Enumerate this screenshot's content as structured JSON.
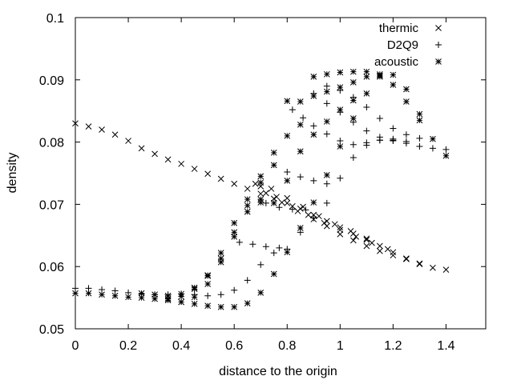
{
  "chart_data": {
    "type": "scatter",
    "xlabel": "distance to the origin",
    "ylabel": "density",
    "xlim": [
      0,
      1.55
    ],
    "ylim": [
      0.05,
      0.1
    ],
    "x_ticks": [
      "0",
      "0.2",
      "0.4",
      "0.6",
      "0.8",
      "1",
      "1.2",
      "1.4"
    ],
    "x_tick_values": [
      0,
      0.2,
      0.4,
      0.6,
      0.8,
      1.0,
      1.2,
      1.4
    ],
    "y_ticks": [
      "0.05",
      "0.06",
      "0.07",
      "0.08",
      "0.09",
      "0.1"
    ],
    "y_tick_values": [
      0.05,
      0.06,
      0.07,
      0.08,
      0.09,
      0.1
    ],
    "grid": false,
    "legend_position": "top-right",
    "series": [
      {
        "name": "thermic",
        "marker": "x",
        "values": [
          [
            0.0,
            0.083
          ],
          [
            0.05,
            0.0825
          ],
          [
            0.1,
            0.082
          ],
          [
            0.15,
            0.0812
          ],
          [
            0.2,
            0.0802
          ],
          [
            0.25,
            0.079
          ],
          [
            0.3,
            0.0781
          ],
          [
            0.35,
            0.0772
          ],
          [
            0.4,
            0.0765
          ],
          [
            0.45,
            0.0757
          ],
          [
            0.5,
            0.0749
          ],
          [
            0.55,
            0.0741
          ],
          [
            0.6,
            0.0733
          ],
          [
            0.65,
            0.0725
          ],
          [
            0.7,
            0.0717
          ],
          [
            0.75,
            0.0709
          ],
          [
            0.8,
            0.0702
          ],
          [
            0.85,
            0.0693
          ],
          [
            0.9,
            0.0683
          ],
          [
            0.95,
            0.0673
          ],
          [
            1.0,
            0.0663
          ],
          [
            1.05,
            0.0653
          ],
          [
            1.1,
            0.0643
          ],
          [
            1.15,
            0.0633
          ],
          [
            1.2,
            0.0623
          ],
          [
            1.25,
            0.0613
          ],
          [
            1.3,
            0.0604
          ],
          [
            1.35,
            0.0598
          ],
          [
            1.4,
            0.0595
          ],
          [
            0.68,
            0.0733
          ],
          [
            0.72,
            0.0718
          ],
          [
            0.78,
            0.0703
          ],
          [
            0.84,
            0.0689
          ],
          [
            0.9,
            0.0676
          ],
          [
            0.95,
            0.0665
          ],
          [
            1.0,
            0.0652
          ],
          [
            1.05,
            0.0642
          ],
          [
            1.1,
            0.0633
          ],
          [
            1.15,
            0.0625
          ],
          [
            1.2,
            0.0618
          ],
          [
            1.25,
            0.0612
          ],
          [
            1.3,
            0.0605
          ],
          [
            0.7,
            0.0729
          ],
          [
            0.76,
            0.0712
          ],
          [
            0.82,
            0.0697
          ],
          [
            0.88,
            0.0683
          ],
          [
            0.94,
            0.067
          ],
          [
            1.0,
            0.0659
          ],
          [
            1.06,
            0.0648
          ],
          [
            1.12,
            0.0638
          ],
          [
            1.18,
            0.0628
          ],
          [
            0.74,
            0.0725
          ],
          [
            0.8,
            0.071
          ],
          [
            0.86,
            0.0696
          ],
          [
            0.92,
            0.0681
          ],
          [
            0.98,
            0.0668
          ],
          [
            1.04,
            0.0657
          ],
          [
            1.1,
            0.0645
          ]
        ]
      },
      {
        "name": "D2Q9",
        "marker": "+",
        "values": [
          [
            0.0,
            0.0565
          ],
          [
            0.05,
            0.0565
          ],
          [
            0.1,
            0.0563
          ],
          [
            0.15,
            0.0561
          ],
          [
            0.2,
            0.0558
          ],
          [
            0.25,
            0.0556
          ],
          [
            0.3,
            0.0555
          ],
          [
            0.35,
            0.0555
          ],
          [
            0.4,
            0.0556
          ],
          [
            0.45,
            0.0555
          ],
          [
            0.5,
            0.0553
          ],
          [
            0.55,
            0.0555
          ],
          [
            0.6,
            0.0562
          ],
          [
            0.65,
            0.0578
          ],
          [
            0.7,
            0.0603
          ],
          [
            0.75,
            0.0622
          ],
          [
            0.8,
            0.0628
          ],
          [
            0.85,
            0.0655
          ],
          [
            0.9,
            0.0678
          ],
          [
            0.95,
            0.0702
          ],
          [
            1.0,
            0.0742
          ],
          [
            1.05,
            0.0775
          ],
          [
            1.1,
            0.0795
          ],
          [
            1.15,
            0.0803
          ],
          [
            1.2,
            0.0803
          ],
          [
            1.25,
            0.0798
          ],
          [
            1.3,
            0.0793
          ],
          [
            1.35,
            0.079
          ],
          [
            1.4,
            0.0788
          ],
          [
            0.82,
            0.0852
          ],
          [
            0.86,
            0.0839
          ],
          [
            0.9,
            0.0826
          ],
          [
            0.95,
            0.0813
          ],
          [
            1.0,
            0.0802
          ],
          [
            1.05,
            0.0796
          ],
          [
            1.1,
            0.0799
          ],
          [
            1.15,
            0.0803
          ],
          [
            1.2,
            0.0802
          ],
          [
            0.9,
            0.0878
          ],
          [
            0.95,
            0.0862
          ],
          [
            1.0,
            0.0848
          ],
          [
            1.05,
            0.0832
          ],
          [
            1.1,
            0.0818
          ],
          [
            1.15,
            0.0808
          ],
          [
            1.2,
            0.0805
          ],
          [
            1.25,
            0.0801
          ],
          [
            0.95,
            0.089
          ],
          [
            1.0,
            0.0883
          ],
          [
            1.05,
            0.0872
          ],
          [
            1.1,
            0.0856
          ],
          [
            1.15,
            0.0838
          ],
          [
            1.2,
            0.0822
          ],
          [
            1.25,
            0.0812
          ],
          [
            1.3,
            0.0806
          ],
          [
            0.62,
            0.0639
          ],
          [
            0.67,
            0.0636
          ],
          [
            0.72,
            0.0632
          ],
          [
            0.77,
            0.063
          ],
          [
            0.72,
            0.0702
          ],
          [
            0.77,
            0.0695
          ],
          [
            0.82,
            0.0692
          ],
          [
            0.87,
            0.0691
          ],
          [
            0.8,
            0.0752
          ],
          [
            0.85,
            0.0744
          ],
          [
            0.9,
            0.0738
          ],
          [
            0.95,
            0.0733
          ]
        ]
      },
      {
        "name": "acoustic",
        "marker": "*",
        "values": [
          [
            0.0,
            0.0557
          ],
          [
            0.05,
            0.0557
          ],
          [
            0.1,
            0.0555
          ],
          [
            0.15,
            0.0553
          ],
          [
            0.2,
            0.0551
          ],
          [
            0.25,
            0.055
          ],
          [
            0.3,
            0.0548
          ],
          [
            0.35,
            0.0546
          ],
          [
            0.4,
            0.0543
          ],
          [
            0.45,
            0.054
          ],
          [
            0.5,
            0.0537
          ],
          [
            0.55,
            0.0535
          ],
          [
            0.6,
            0.0535
          ],
          [
            0.65,
            0.0541
          ],
          [
            0.7,
            0.0558
          ],
          [
            0.75,
            0.0588
          ],
          [
            0.8,
            0.0623
          ],
          [
            0.85,
            0.0662
          ],
          [
            0.9,
            0.0703
          ],
          [
            0.95,
            0.0747
          ],
          [
            1.0,
            0.0793
          ],
          [
            1.05,
            0.0838
          ],
          [
            1.1,
            0.0878
          ],
          [
            1.15,
            0.0905
          ],
          [
            1.2,
            0.0908
          ],
          [
            1.25,
            0.0885
          ],
          [
            1.3,
            0.0845
          ],
          [
            1.35,
            0.0805
          ],
          [
            1.4,
            0.0778
          ],
          [
            0.25,
            0.0557
          ],
          [
            0.3,
            0.0555
          ],
          [
            0.35,
            0.0553
          ],
          [
            0.4,
            0.0556
          ],
          [
            0.45,
            0.0566
          ],
          [
            0.5,
            0.0585
          ],
          [
            0.55,
            0.0613
          ],
          [
            0.6,
            0.0655
          ],
          [
            0.65,
            0.0688
          ],
          [
            0.7,
            0.0708
          ],
          [
            0.35,
            0.0548
          ],
          [
            0.4,
            0.0552
          ],
          [
            0.45,
            0.0564
          ],
          [
            0.5,
            0.0586
          ],
          [
            0.55,
            0.0622
          ],
          [
            0.6,
            0.067
          ],
          [
            0.65,
            0.0708
          ],
          [
            0.7,
            0.0735
          ],
          [
            0.75,
            0.0763
          ],
          [
            0.4,
            0.0543
          ],
          [
            0.45,
            0.0551
          ],
          [
            0.5,
            0.0572
          ],
          [
            0.55,
            0.0607
          ],
          [
            0.6,
            0.0648
          ],
          [
            0.65,
            0.0698
          ],
          [
            0.7,
            0.0745
          ],
          [
            0.75,
            0.0783
          ],
          [
            0.8,
            0.081
          ],
          [
            0.85,
            0.0828
          ],
          [
            0.7,
            0.0703
          ],
          [
            0.75,
            0.0702
          ],
          [
            0.8,
            0.0738
          ],
          [
            0.85,
            0.0785
          ],
          [
            0.9,
            0.0812
          ],
          [
            0.95,
            0.0833
          ],
          [
            1.0,
            0.0852
          ],
          [
            1.05,
            0.0867
          ],
          [
            0.8,
            0.0866
          ],
          [
            0.85,
            0.0865
          ],
          [
            0.9,
            0.0874
          ],
          [
            0.95,
            0.0881
          ],
          [
            1.0,
            0.0888
          ],
          [
            1.05,
            0.0896
          ],
          [
            1.1,
            0.0905
          ],
          [
            1.15,
            0.0909
          ],
          [
            0.9,
            0.0905
          ],
          [
            0.95,
            0.0909
          ],
          [
            1.0,
            0.0912
          ],
          [
            1.05,
            0.0913
          ],
          [
            1.1,
            0.0913
          ],
          [
            1.15,
            0.0907
          ],
          [
            1.2,
            0.0892
          ],
          [
            1.25,
            0.0865
          ],
          [
            1.3,
            0.0835
          ]
        ]
      }
    ]
  }
}
